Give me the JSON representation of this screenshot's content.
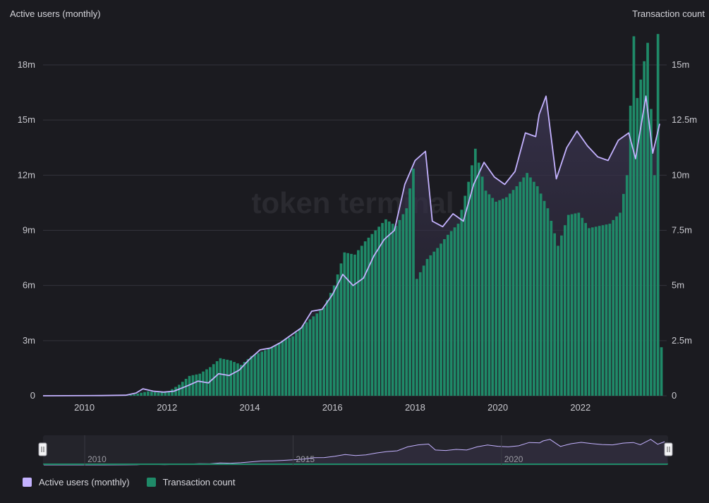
{
  "watermark": "token terminal",
  "colors": {
    "background": "#1b1b20",
    "users_line": "#c4b2ff",
    "users_fill": "#2b2838",
    "bars": "#1f8a68",
    "grid": "#33333b"
  },
  "navigator": {
    "years": [
      "2010",
      "2015",
      "2020"
    ]
  },
  "chart_data": {
    "type": "bar",
    "title": "",
    "x_range": [
      "2009-01",
      "2023-12"
    ],
    "x_ticks": [
      "2010",
      "2012",
      "2014",
      "2016",
      "2018",
      "2020",
      "2022"
    ],
    "y_left": {
      "label": "Active users (monthly)",
      "min": 0,
      "max": 18000000,
      "ticks": [
        "0",
        "3m",
        "6m",
        "9m",
        "12m",
        "15m",
        "18m"
      ]
    },
    "y_right": {
      "label": "Transaction count",
      "min": 0,
      "max": 15000000,
      "ticks": [
        "0",
        "2.5m",
        "5m",
        "7.5m",
        "10m",
        "12.5m",
        "15m"
      ]
    },
    "legend": [
      "Active users (monthly)",
      "Transaction count"
    ],
    "series": [
      {
        "name": "Active users (monthly)",
        "type": "line",
        "axis": "left",
        "points": [
          [
            "2009-01",
            0.0
          ],
          [
            "2010-06",
            0.01
          ],
          [
            "2011-01",
            0.03
          ],
          [
            "2011-04",
            0.15
          ],
          [
            "2011-06",
            0.38
          ],
          [
            "2011-09",
            0.25
          ],
          [
            "2011-12",
            0.2
          ],
          [
            "2012-03",
            0.25
          ],
          [
            "2012-07",
            0.55
          ],
          [
            "2012-10",
            0.8
          ],
          [
            "2013-01",
            0.7
          ],
          [
            "2013-04",
            1.2
          ],
          [
            "2013-07",
            1.1
          ],
          [
            "2013-10",
            1.4
          ],
          [
            "2014-01",
            2.0
          ],
          [
            "2014-04",
            2.5
          ],
          [
            "2014-07",
            2.6
          ],
          [
            "2014-10",
            2.9
          ],
          [
            "2015-01",
            3.3
          ],
          [
            "2015-04",
            3.7
          ],
          [
            "2015-07",
            4.6
          ],
          [
            "2015-10",
            4.7
          ],
          [
            "2016-01",
            5.5
          ],
          [
            "2016-04",
            6.6
          ],
          [
            "2016-07",
            6.0
          ],
          [
            "2016-10",
            6.4
          ],
          [
            "2017-01",
            7.6
          ],
          [
            "2017-04",
            8.5
          ],
          [
            "2017-07",
            9.0
          ],
          [
            "2017-10",
            11.5
          ],
          [
            "2018-01",
            12.8
          ],
          [
            "2018-04",
            13.3
          ],
          [
            "2018-06",
            9.5
          ],
          [
            "2018-09",
            9.2
          ],
          [
            "2018-12",
            9.9
          ],
          [
            "2019-03",
            9.5
          ],
          [
            "2019-06",
            11.5
          ],
          [
            "2019-09",
            12.7
          ],
          [
            "2019-12",
            11.9
          ],
          [
            "2020-03",
            11.5
          ],
          [
            "2020-06",
            12.2
          ],
          [
            "2020-09",
            14.3
          ],
          [
            "2020-12",
            14.1
          ],
          [
            "2021-01",
            15.3
          ],
          [
            "2021-03",
            16.3
          ],
          [
            "2021-06",
            11.8
          ],
          [
            "2021-09",
            13.5
          ],
          [
            "2021-12",
            14.4
          ],
          [
            "2022-03",
            13.6
          ],
          [
            "2022-06",
            13.0
          ],
          [
            "2022-09",
            12.8
          ],
          [
            "2022-12",
            13.9
          ],
          [
            "2023-03",
            14.3
          ],
          [
            "2023-05",
            12.9
          ],
          [
            "2023-08",
            16.3
          ],
          [
            "2023-10",
            13.2
          ],
          [
            "2023-12",
            14.8
          ]
        ]
      },
      {
        "name": "Transaction count",
        "type": "bar",
        "axis": "right",
        "points": [
          [
            "2009-01",
            0.0
          ],
          [
            "2010-06",
            0.0
          ],
          [
            "2011-01",
            0.01
          ],
          [
            "2011-04",
            0.1
          ],
          [
            "2011-07",
            0.2
          ],
          [
            "2011-10",
            0.15
          ],
          [
            "2012-01",
            0.2
          ],
          [
            "2012-04",
            0.5
          ],
          [
            "2012-07",
            0.9
          ],
          [
            "2012-10",
            1.0
          ],
          [
            "2013-01",
            1.3
          ],
          [
            "2013-04",
            1.7
          ],
          [
            "2013-07",
            1.6
          ],
          [
            "2013-10",
            1.4
          ],
          [
            "2014-01",
            1.8
          ],
          [
            "2014-04",
            2.0
          ],
          [
            "2014-07",
            2.2
          ],
          [
            "2014-10",
            2.5
          ],
          [
            "2015-01",
            2.7
          ],
          [
            "2015-04",
            3.2
          ],
          [
            "2015-07",
            3.6
          ],
          [
            "2015-10",
            4.0
          ],
          [
            "2016-01",
            5.0
          ],
          [
            "2016-04",
            6.5
          ],
          [
            "2016-07",
            6.4
          ],
          [
            "2016-10",
            7.0
          ],
          [
            "2017-01",
            7.5
          ],
          [
            "2017-04",
            8.0
          ],
          [
            "2017-07",
            7.7
          ],
          [
            "2017-10",
            8.5
          ],
          [
            "2017-12",
            10.3
          ],
          [
            "2018-01",
            5.3
          ],
          [
            "2018-04",
            6.2
          ],
          [
            "2018-07",
            6.7
          ],
          [
            "2018-10",
            7.3
          ],
          [
            "2019-01",
            7.8
          ],
          [
            "2019-04",
            9.7
          ],
          [
            "2019-06",
            11.2
          ],
          [
            "2019-09",
            9.3
          ],
          [
            "2019-12",
            8.8
          ],
          [
            "2020-03",
            9.0
          ],
          [
            "2020-06",
            9.5
          ],
          [
            "2020-09",
            10.1
          ],
          [
            "2020-12",
            9.5
          ],
          [
            "2021-03",
            8.5
          ],
          [
            "2021-06",
            6.8
          ],
          [
            "2021-09",
            8.2
          ],
          [
            "2021-12",
            8.3
          ],
          [
            "2022-03",
            7.6
          ],
          [
            "2022-06",
            7.7
          ],
          [
            "2022-09",
            7.8
          ],
          [
            "2022-12",
            8.3
          ],
          [
            "2023-02",
            10.0
          ],
          [
            "2023-04",
            16.3
          ],
          [
            "2023-05",
            13.5
          ],
          [
            "2023-08",
            16.0
          ],
          [
            "2023-10",
            10.0
          ],
          [
            "2023-11",
            16.4
          ],
          [
            "2023-12",
            2.2
          ]
        ]
      }
    ],
    "grid": true,
    "legend_position": "bottom-left"
  }
}
